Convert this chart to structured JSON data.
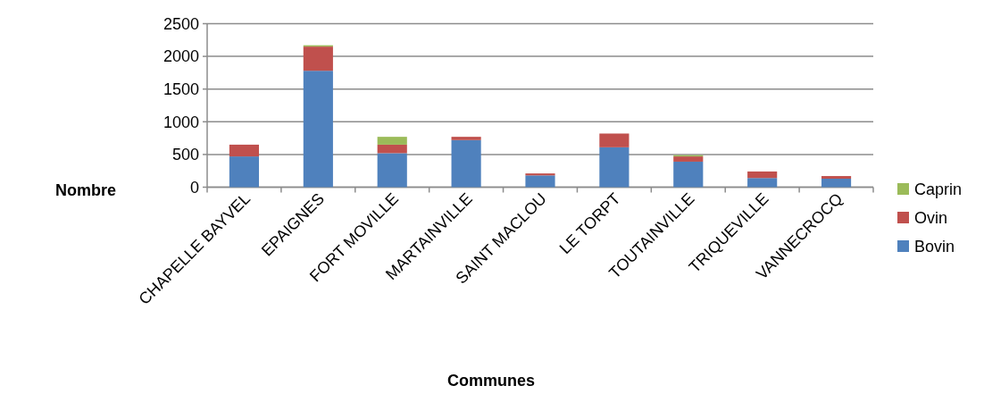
{
  "chart_data": {
    "type": "bar",
    "stacked": true,
    "xlabel": "Communes",
    "ylabel": "Nombre",
    "categories": [
      "CHAPELLE BAYVEL",
      "EPAIGNES",
      "FORT MOVILLE",
      "MARTAINVILLE",
      "SAINT MACLOU",
      "LE TORPT",
      "TOUTAINVILLE",
      "TRIQUEVILLE",
      "VANNECROCQ"
    ],
    "series": [
      {
        "name": "Bovin",
        "color": "#4f81bd",
        "values": [
          470,
          1780,
          520,
          720,
          180,
          610,
          390,
          140,
          130
        ]
      },
      {
        "name": "Ovin",
        "color": "#c0504d",
        "values": [
          180,
          370,
          130,
          50,
          30,
          210,
          80,
          100,
          40
        ]
      },
      {
        "name": "Caprin",
        "color": "#9bbb59",
        "values": [
          0,
          20,
          120,
          0,
          0,
          0,
          20,
          0,
          0
        ]
      }
    ],
    "ylim": [
      0,
      2500
    ],
    "yticks": [
      0,
      500,
      1000,
      1500,
      2000,
      2500
    ],
    "grid": "y",
    "legend": "right"
  }
}
